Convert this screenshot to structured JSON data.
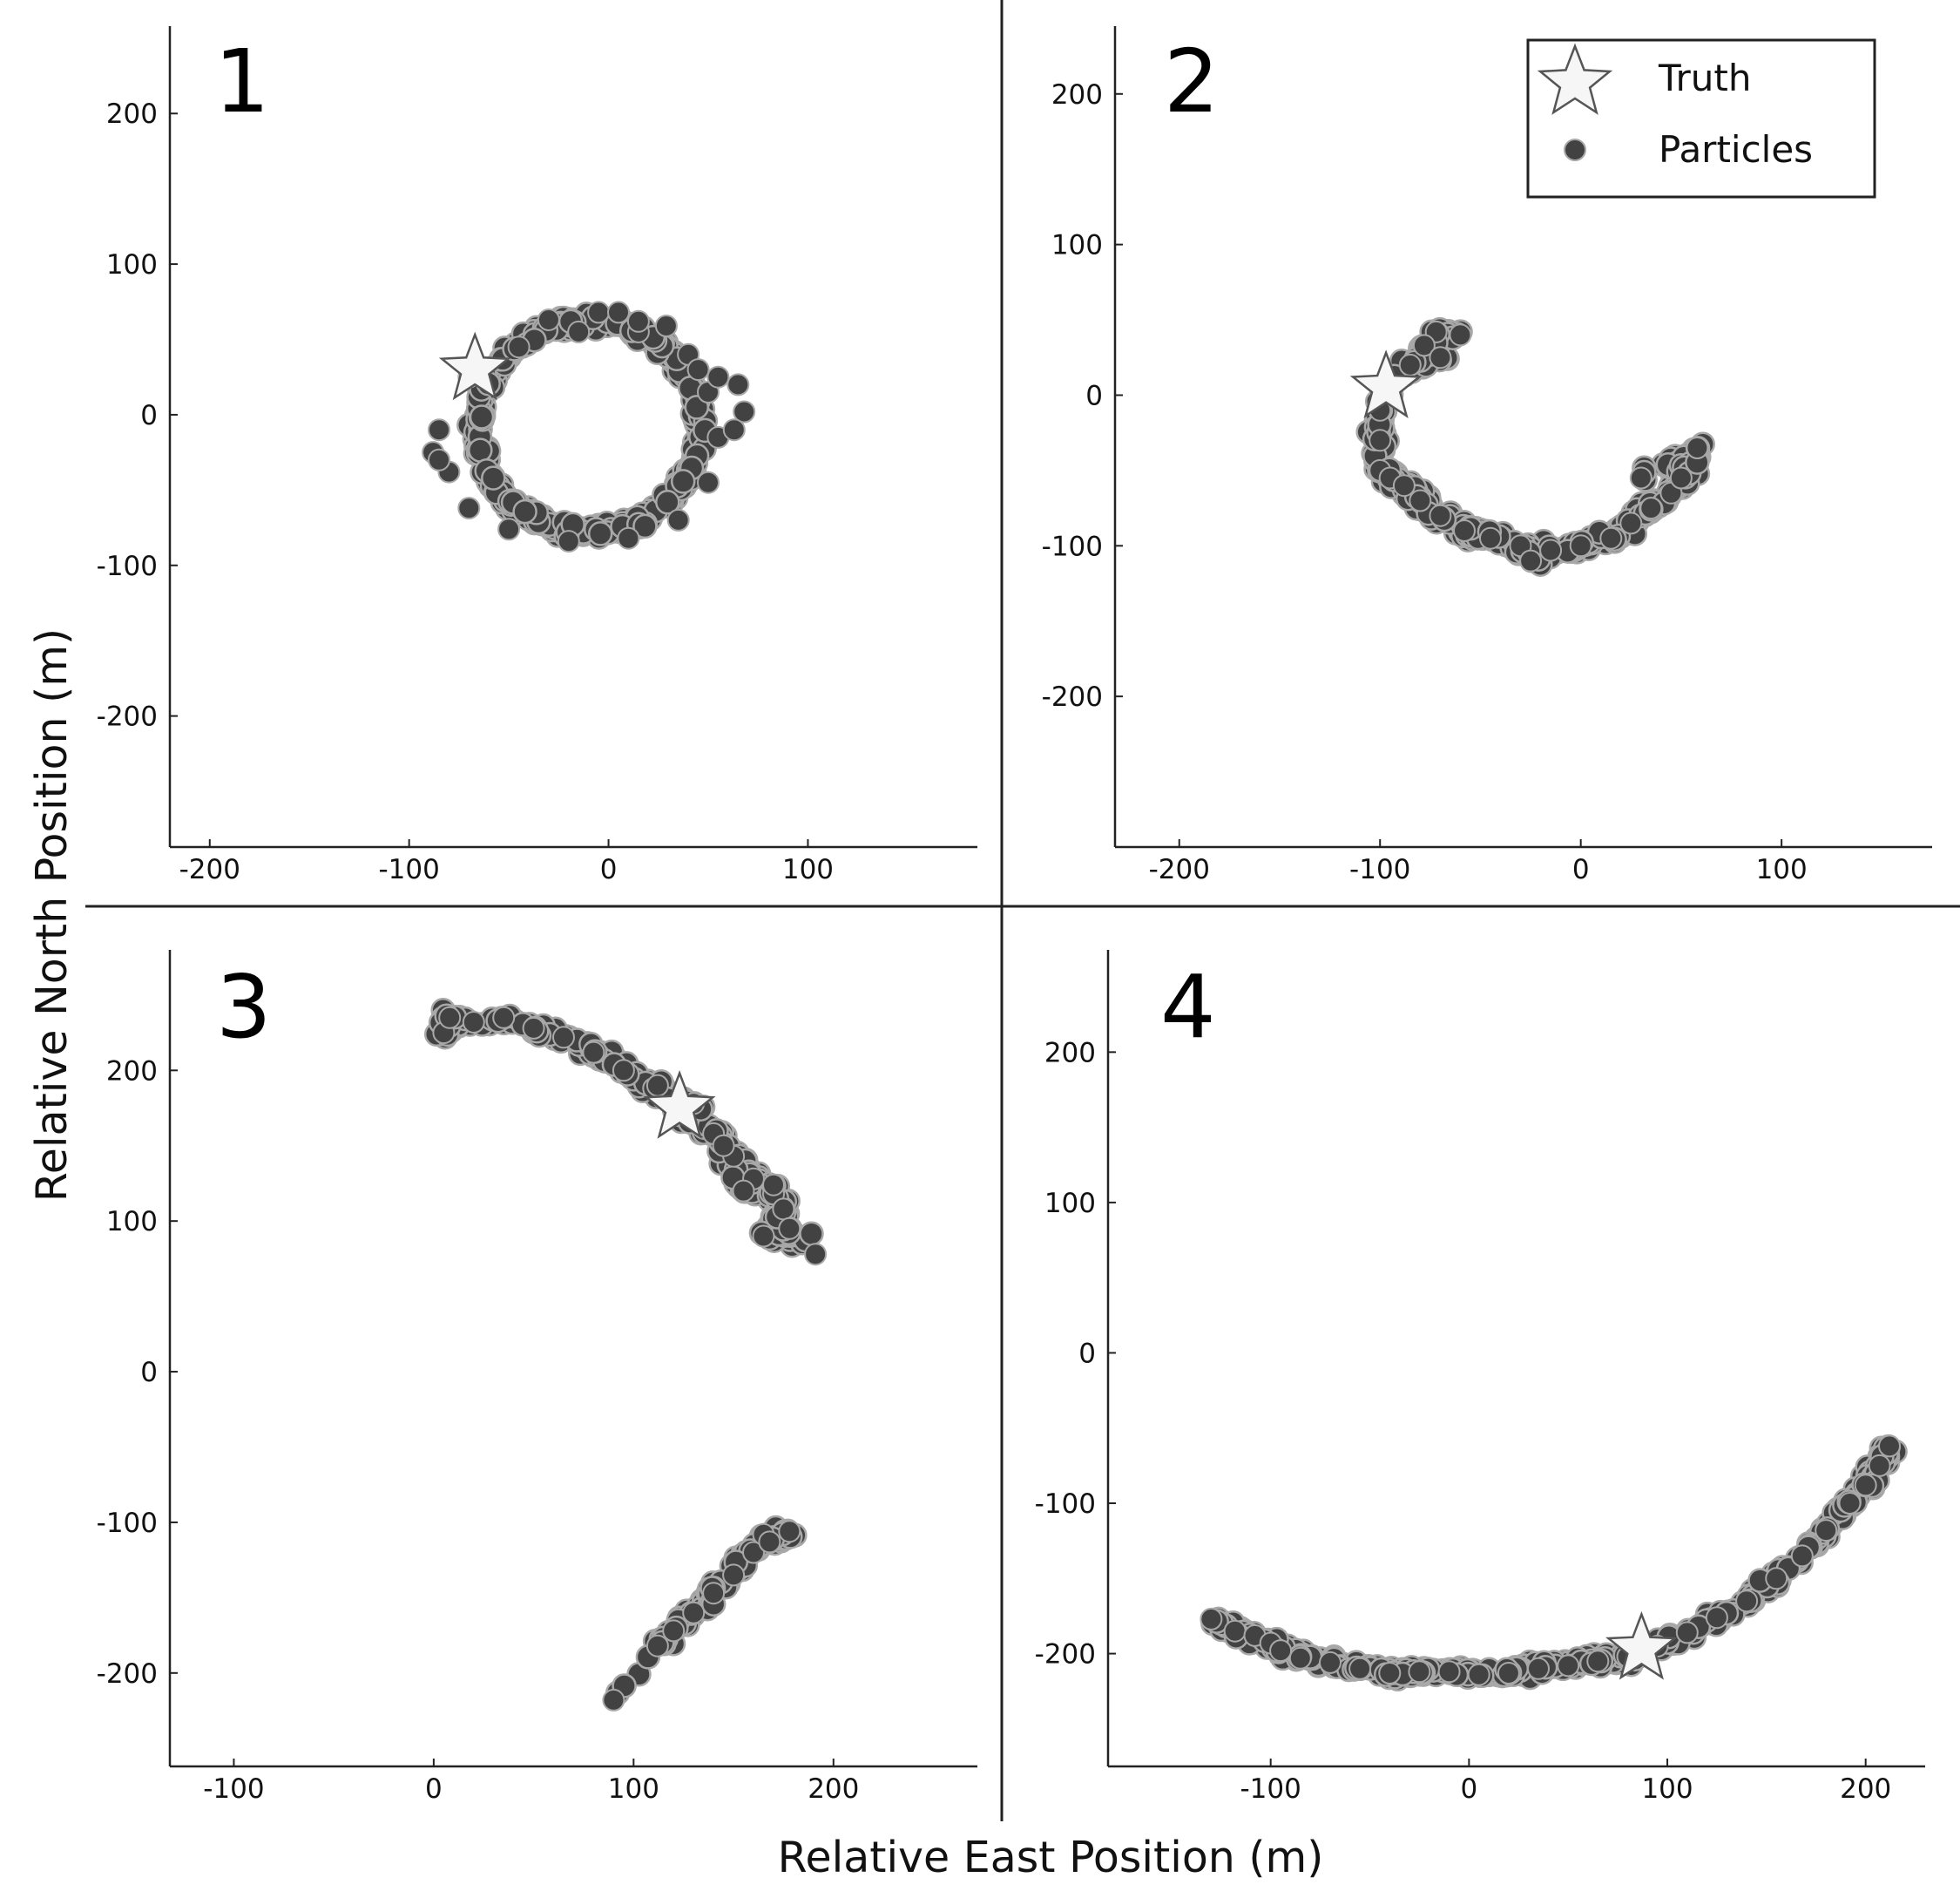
{
  "figure": {
    "xlabel": "Relative East Position (m)",
    "ylabel": "Relative North Position (m)",
    "colors": {
      "particle_fill": "#424242",
      "particle_halo": "#a8a8a8",
      "star_fill": "#f6f6f6",
      "star_stroke": "#555555",
      "axis": "#222222",
      "divider": "#222222"
    }
  },
  "legend": {
    "placement": "top-right of panel 2",
    "entries": [
      {
        "label": "Truth",
        "marker": "star-icon"
      },
      {
        "label": "Particles",
        "marker": "filled-circle"
      }
    ]
  },
  "chart_data": [
    {
      "type": "scatter",
      "panel_label": "1",
      "xlim": [
        -220,
        185
      ],
      "ylim": [
        -287,
        258
      ],
      "xticks": [
        -200,
        -100,
        0,
        100
      ],
      "yticks": [
        200,
        100,
        0,
        -100,
        -200
      ],
      "grid": false,
      "truth": {
        "x": -67,
        "y": 30
      },
      "particles": {
        "shape": "ring",
        "center": [
          -10,
          -8
        ],
        "rx": 56,
        "ry": 70,
        "spread": 9,
        "points": [
          [
            -85,
            -10
          ],
          [
            -80,
            -38
          ],
          [
            -70,
            -62
          ],
          [
            -50,
            -76
          ],
          [
            -20,
            -84
          ],
          [
            10,
            -82
          ],
          [
            35,
            -70
          ],
          [
            50,
            -45
          ],
          [
            55,
            -15
          ],
          [
            50,
            15
          ],
          [
            40,
            40
          ],
          [
            15,
            55
          ],
          [
            -15,
            55
          ],
          [
            -45,
            45
          ],
          [
            -70,
            25
          ],
          [
            -30,
            63
          ],
          [
            -5,
            68
          ],
          [
            5,
            68
          ],
          [
            15,
            62
          ],
          [
            29,
            59
          ],
          [
            45,
            30
          ],
          [
            55,
            25
          ],
          [
            65,
            20
          ],
          [
            68,
            2
          ],
          [
            63,
            -10
          ],
          [
            -88,
            -25
          ],
          [
            -85,
            -30
          ]
        ]
      }
    },
    {
      "type": "scatter",
      "panel_label": "2",
      "xlim": [
        -232,
        175
      ],
      "ylim": [
        -300,
        245
      ],
      "xticks": [
        -200,
        -100,
        0,
        100
      ],
      "yticks": [
        200,
        100,
        0,
        -100,
        -200
      ],
      "grid": false,
      "truth": {
        "x": -97,
        "y": 5
      },
      "particles": {
        "shape": "arc",
        "center": [
          -15,
          -10
        ],
        "radius": 85,
        "theta": [
          5,
          95
        ],
        "spread": 7,
        "points": [
          [
            -72,
            42
          ],
          [
            -60,
            40
          ],
          [
            -78,
            33
          ],
          [
            -70,
            25
          ],
          [
            -85,
            20
          ],
          [
            -95,
            5
          ],
          [
            -100,
            -10
          ],
          [
            -100,
            -30
          ],
          [
            -100,
            -50
          ],
          [
            -95,
            -55
          ],
          [
            -88,
            -60
          ],
          [
            -80,
            -70
          ],
          [
            -70,
            -80
          ],
          [
            -58,
            -90
          ],
          [
            -45,
            -95
          ],
          [
            -30,
            -100
          ],
          [
            -25,
            -110
          ],
          [
            -15,
            -103
          ],
          [
            0,
            -100
          ],
          [
            15,
            -95
          ],
          [
            25,
            -85
          ],
          [
            35,
            -75
          ],
          [
            45,
            -65
          ],
          [
            50,
            -55
          ],
          [
            58,
            -35
          ],
          [
            30,
            -55
          ]
        ]
      }
    },
    {
      "type": "scatter",
      "panel_label": "3",
      "xlim": [
        -132,
        272
      ],
      "ylim": [
        -262,
        280
      ],
      "xticks": [
        -100,
        0,
        100,
        200
      ],
      "yticks": [
        200,
        100,
        0,
        -100,
        -200
      ],
      "grid": false,
      "truth": {
        "x": 123,
        "y": 175
      },
      "particles": {
        "shape": "two-clusters",
        "spread": 7,
        "points": [
          [
            5,
            225
          ],
          [
            8,
            235
          ],
          [
            20,
            232
          ],
          [
            35,
            235
          ],
          [
            50,
            228
          ],
          [
            65,
            222
          ],
          [
            80,
            212
          ],
          [
            95,
            200
          ],
          [
            110,
            188
          ],
          [
            125,
            172
          ],
          [
            140,
            158
          ],
          [
            150,
            143
          ],
          [
            160,
            128
          ],
          [
            170,
            118
          ],
          [
            175,
            108
          ],
          [
            165,
            90
          ],
          [
            178,
            95
          ],
          [
            191,
            78
          ],
          [
            112,
            190
          ],
          [
            130,
            178
          ],
          [
            145,
            150
          ],
          [
            155,
            120
          ],
          [
            170,
            124
          ],
          [
            90,
            -218
          ],
          [
            112,
            -182
          ],
          [
            120,
            -172
          ],
          [
            130,
            -160
          ],
          [
            140,
            -147
          ],
          [
            150,
            -135
          ],
          [
            160,
            -120
          ],
          [
            165,
            -108
          ],
          [
            178,
            -106
          ],
          [
            168,
            -113
          ]
        ]
      }
    },
    {
      "type": "scatter",
      "panel_label": "4",
      "xlim": [
        -182,
        230
      ],
      "ylim": [
        -275,
        268
      ],
      "xticks": [
        -100,
        0,
        100,
        200
      ],
      "yticks": [
        200,
        100,
        0,
        -100,
        -200
      ],
      "grid": false,
      "truth": {
        "x": 87,
        "y": -197
      },
      "particles": {
        "shape": "arc",
        "spread": 6,
        "points": [
          [
            -130,
            -177
          ],
          [
            -118,
            -185
          ],
          [
            -108,
            -188
          ],
          [
            -100,
            -193
          ],
          [
            -95,
            -198
          ],
          [
            -85,
            -203
          ],
          [
            -70,
            -206
          ],
          [
            -55,
            -210
          ],
          [
            -40,
            -213
          ],
          [
            -25,
            -212
          ],
          [
            -10,
            -212
          ],
          [
            5,
            -214
          ],
          [
            20,
            -213
          ],
          [
            35,
            -210
          ],
          [
            50,
            -208
          ],
          [
            65,
            -205
          ],
          [
            80,
            -202
          ],
          [
            95,
            -195
          ],
          [
            110,
            -186
          ],
          [
            125,
            -176
          ],
          [
            140,
            -165
          ],
          [
            155,
            -150
          ],
          [
            168,
            -135
          ],
          [
            180,
            -118
          ],
          [
            192,
            -100
          ],
          [
            200,
            -88
          ],
          [
            207,
            -75
          ],
          [
            212,
            -62
          ]
        ]
      }
    }
  ]
}
